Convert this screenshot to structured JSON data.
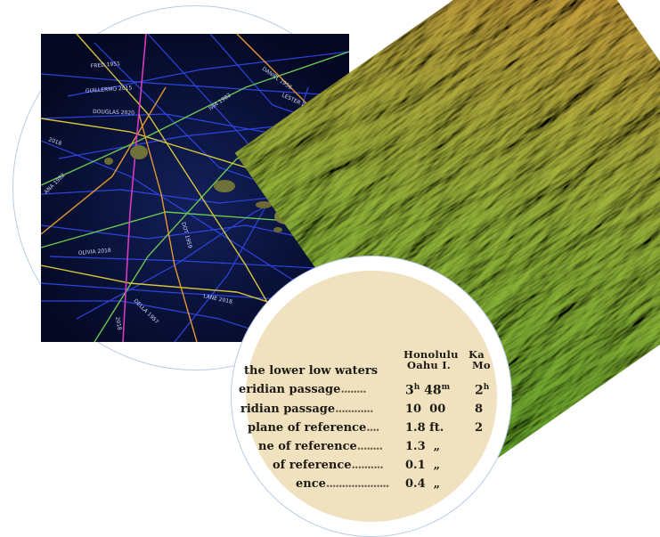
{
  "map": {
    "track_labels": [
      "FRED 1951",
      "DANIEL 1956",
      "GUILLERMO 2015",
      "IWA 1982",
      "LESTER 2016",
      "DOUGLAS 2020",
      "2018",
      "ANA 1982",
      "DOT 1959",
      "OLIVIA 2018",
      "LANE 2018",
      "DELLA 1957",
      "2018"
    ],
    "colors": {
      "ocean": "#050a2a",
      "track_blue": "#2f48e8",
      "track_yellow": "#d6c63a",
      "track_green": "#69c84e",
      "track_orange": "#e49a2c",
      "track_magenta": "#d63abf",
      "islands": "#7a7a3c"
    }
  },
  "terrain": {
    "colors": {
      "low": "#6eae2f",
      "mid": "#a9b83f",
      "high": "#c89a3c"
    }
  },
  "tide_table": {
    "header_col1_line1": "Honolulu",
    "header_col1_line2": "Oahu I.",
    "header_col2_line1": "Ka",
    "header_col2_line2": "Mo",
    "rows": [
      {
        "label": "the lower low waters",
        "leader": "",
        "v1": "",
        "v2": ""
      },
      {
        "label": "eridian passage",
        "leader": "........",
        "v1": "3",
        "v1_sup": "h",
        "v1b": " 48",
        "v1b_sup": "m",
        "v2": "2",
        "v2_sup": "h"
      },
      {
        "label": "ridian passage",
        "leader": "............",
        "v1": "10  00",
        "v2": "8"
      },
      {
        "label": "plane of reference",
        "leader": "....",
        "v1": "1.8 ft.",
        "v2": "2"
      },
      {
        "label": "ne of reference",
        "leader": "........",
        "v1": "1.3  „",
        "v2": ""
      },
      {
        "label": "of reference",
        "leader": "..........",
        "v1": "0.1  „",
        "v2": ""
      },
      {
        "label": "ence",
        "leader": "....................",
        "v1": "0.4  „",
        "v2": ""
      }
    ],
    "colors": {
      "paper": "#f1e2bf",
      "ink": "#1e1a14"
    }
  }
}
